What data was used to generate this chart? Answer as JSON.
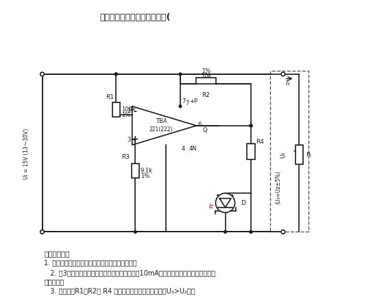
{
  "title": "采用运算放大器的基准电压源(",
  "bg_color": "#ffffff",
  "text_color": "#000000",
  "line_color": "#1a1a1a",
  "description_lines": [
    "该电路特点：",
    "1. 运算放大器不会产生漂移，稳压管有温度补偿；",
    "",
    "   2. 脚3的输出电压很小，因此，输出电流不小于10mA，它不会对稳压性能和漂移特性\n产生影响；",
    "   3. 适当选择R1、R2和 R4 可使输出电压有较大的范围（U₃>U₂）。"
  ]
}
